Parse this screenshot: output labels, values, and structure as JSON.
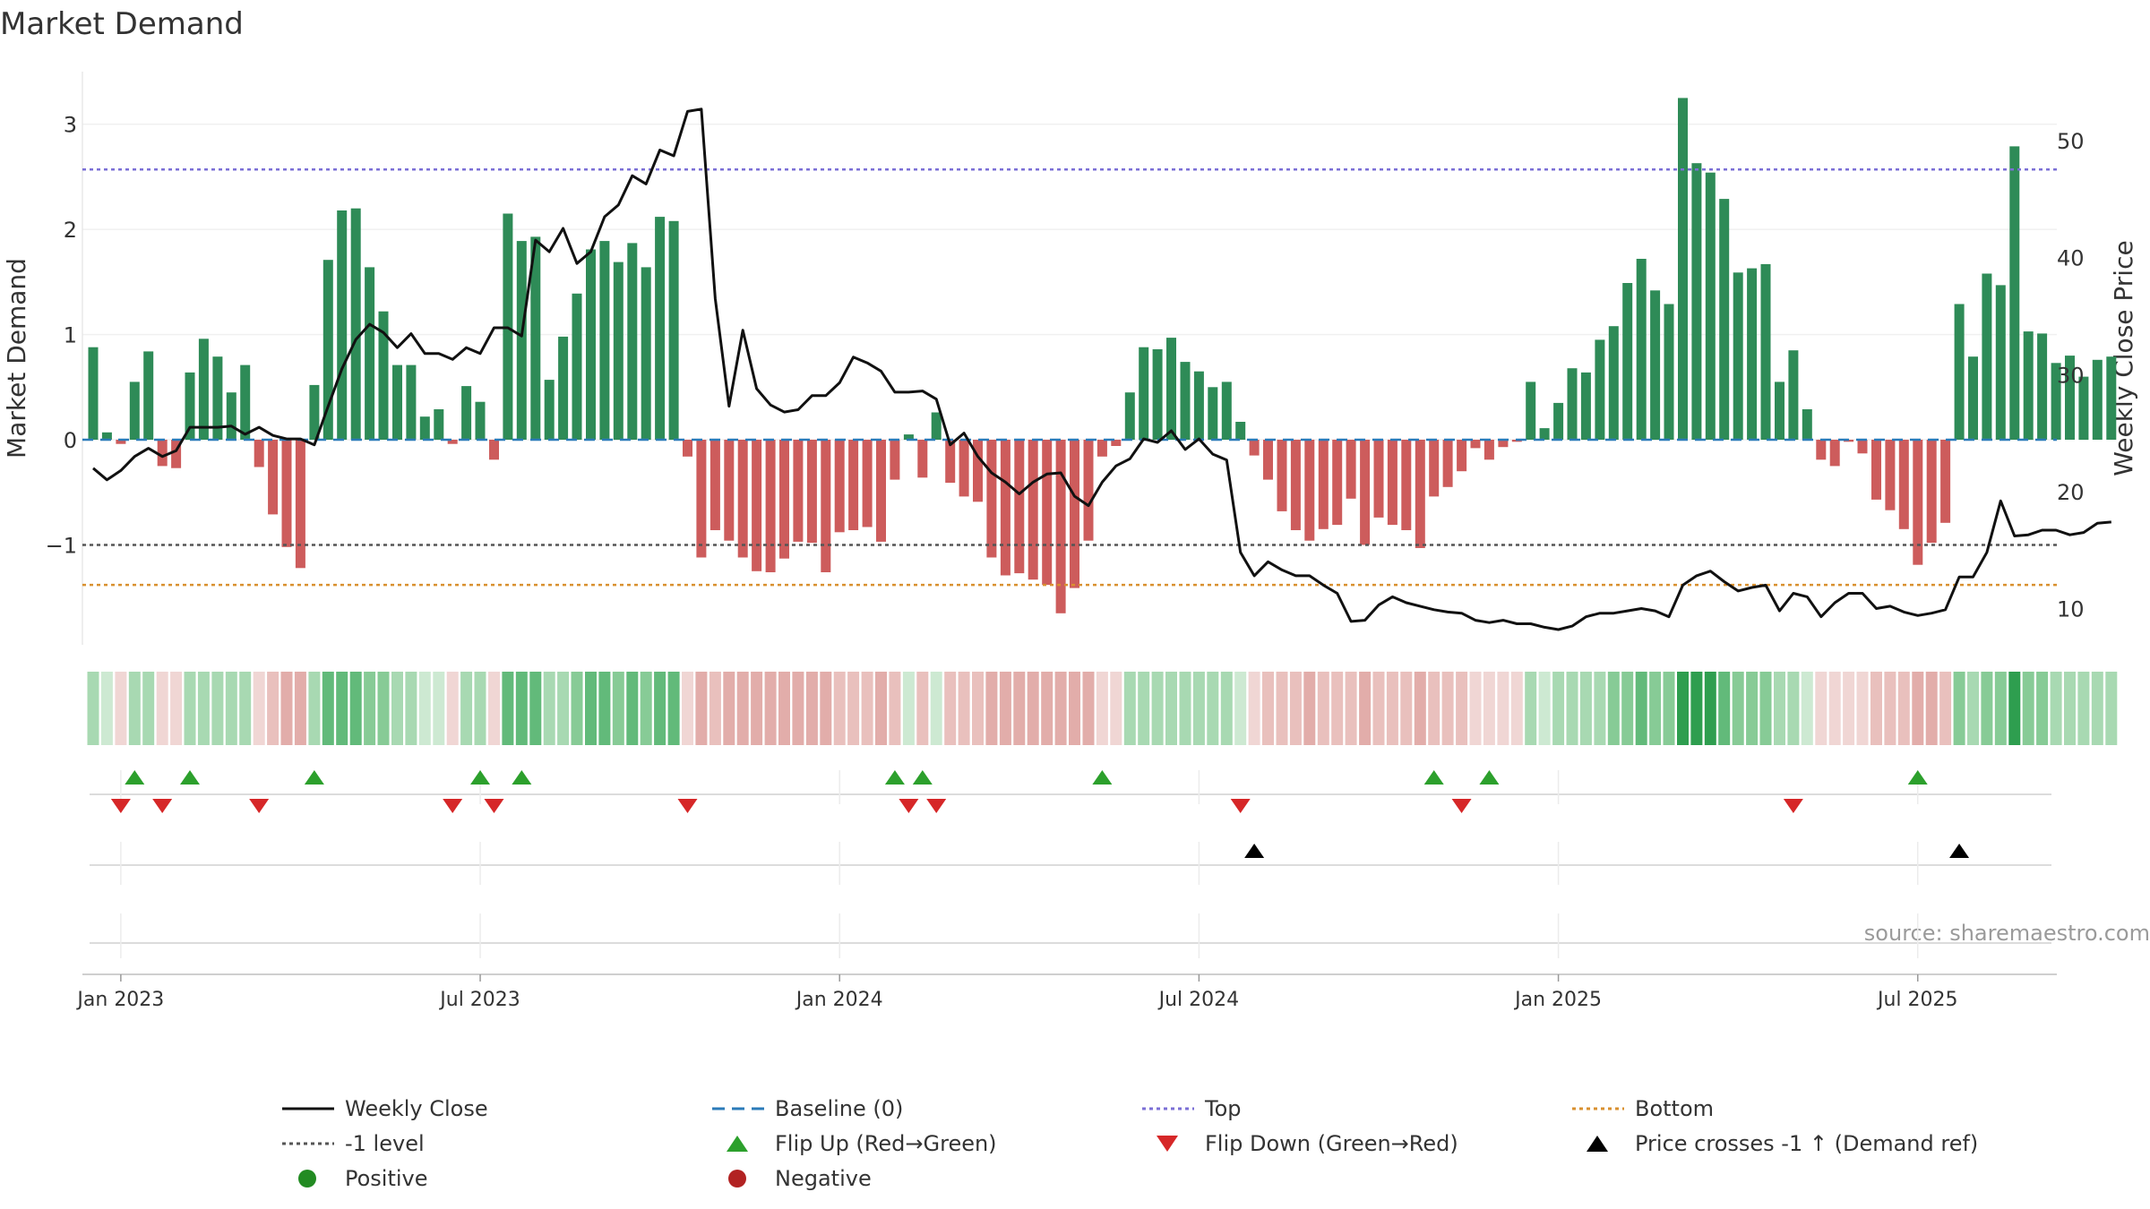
{
  "chart_data": {
    "type": "bar",
    "title": "Market Demand",
    "ylabel": "Market Demand",
    "y2label": "Weekly Close Price",
    "ylim": [
      -1.95,
      3.5
    ],
    "y2lim": [
      6.9,
      55.9
    ],
    "yticks": [
      -1,
      0,
      1,
      2,
      3
    ],
    "ytick_labels": [
      "−1",
      "0",
      "1",
      "2",
      "3"
    ],
    "y2ticks": [
      10,
      20,
      30,
      40,
      50
    ],
    "y2tick_labels": [
      "10",
      "20",
      "30",
      "40",
      "50"
    ],
    "x_start_week": 0,
    "x_end_week": 142,
    "x_tick_weeks": [
      2,
      28,
      54,
      80,
      106,
      132
    ],
    "x_tick_labels": [
      "Jan 2023",
      "Jul 2023",
      "Jan 2024",
      "Jul 2024",
      "Jan 2025",
      "Jul 2025"
    ],
    "reference_lines": {
      "baseline": 0,
      "top": 2.57,
      "minus_one": -1,
      "bottom": -1.38
    },
    "colors": {
      "positive": "#2e8b57",
      "negative": "#cd5c5c",
      "close_line": "#111111",
      "baseline": "#2b7bb9",
      "top": "#7b6fd6",
      "minus_one": "#555555",
      "bottom": "#d9902f",
      "flip_up": "#2ca02c",
      "flip_down": "#d62728",
      "cross": "#000000",
      "positive_dot": "#228b22",
      "negative_dot": "#b22222"
    },
    "series": [
      {
        "name": "Market Demand",
        "values": [
          0.88,
          0.07,
          -0.04,
          0.55,
          0.84,
          -0.25,
          -0.27,
          0.64,
          0.96,
          0.79,
          0.45,
          0.71,
          -0.26,
          -0.71,
          -1.02,
          -1.22,
          0.52,
          1.71,
          2.18,
          2.2,
          1.64,
          1.22,
          0.71,
          0.71,
          0.22,
          0.29,
          -0.04,
          0.51,
          0.36,
          -0.19,
          2.15,
          1.89,
          1.93,
          0.57,
          0.98,
          1.39,
          1.81,
          1.89,
          1.69,
          1.87,
          1.64,
          2.12,
          2.08,
          -0.16,
          -1.12,
          -0.86,
          -0.96,
          -1.12,
          -1.25,
          -1.26,
          -1.13,
          -0.97,
          -0.98,
          -1.26,
          -0.88,
          -0.86,
          -0.83,
          -0.97,
          -0.38,
          0.05,
          -0.36,
          0.26,
          -0.41,
          -0.54,
          -0.59,
          -1.12,
          -1.29,
          -1.27,
          -1.33,
          -1.38,
          -1.65,
          -1.41,
          -0.96,
          -0.16,
          -0.06,
          0.45,
          0.88,
          0.86,
          0.97,
          0.74,
          0.65,
          0.5,
          0.55,
          0.17,
          -0.15,
          -0.38,
          -0.68,
          -0.86,
          -0.96,
          -0.85,
          -0.81,
          -0.56,
          -1.0,
          -0.74,
          -0.81,
          -0.86,
          -1.03,
          -0.54,
          -0.45,
          -0.3,
          -0.08,
          -0.19,
          -0.07,
          -0.02,
          0.55,
          0.11,
          0.35,
          0.68,
          0.64,
          0.95,
          1.08,
          1.49,
          1.72,
          1.42,
          1.29,
          3.25,
          2.63,
          2.54,
          2.29,
          1.59,
          1.63,
          1.67,
          0.55,
          0.85,
          0.29,
          -0.19,
          -0.25,
          -0.02,
          -0.13,
          -0.57,
          -0.67,
          -0.85,
          -1.19,
          -0.98,
          -0.79,
          1.29,
          0.79,
          1.58,
          1.47,
          2.79,
          1.03,
          1.01,
          0.73,
          0.8,
          0.6,
          0.76,
          0.79
        ]
      },
      {
        "name": "Weekly Close",
        "axis": "right",
        "values": [
          22.0,
          21.0,
          21.8,
          23.0,
          23.7,
          23.0,
          23.5,
          25.5,
          25.5,
          25.5,
          25.6,
          24.9,
          25.5,
          24.8,
          24.5,
          24.5,
          24.0,
          27.3,
          30.5,
          33.0,
          34.3,
          33.6,
          32.3,
          33.5,
          31.8,
          31.8,
          31.3,
          32.3,
          31.8,
          34.0,
          34.0,
          33.3,
          41.5,
          40.5,
          42.5,
          39.5,
          40.5,
          43.5,
          44.5,
          47.0,
          46.3,
          49.2,
          48.7,
          52.5,
          52.7,
          36.5,
          27.3,
          33.8,
          28.8,
          27.4,
          26.8,
          27.0,
          28.2,
          28.2,
          29.3,
          31.5,
          31.0,
          30.3,
          28.5,
          28.5,
          28.6,
          27.9,
          24.0,
          25.0,
          23.0,
          21.6,
          20.8,
          19.8,
          20.8,
          21.5,
          21.6,
          19.6,
          18.8,
          20.8,
          22.2,
          22.8,
          24.5,
          24.2,
          25.2,
          23.6,
          24.5,
          23.2,
          22.7,
          14.8,
          12.8,
          14.0,
          13.3,
          12.8,
          12.8,
          12.0,
          11.3,
          8.9,
          9.0,
          10.3,
          11.0,
          10.5,
          10.2,
          9.9,
          9.7,
          9.6,
          9.0,
          8.8,
          9.0,
          8.7,
          8.7,
          8.4,
          8.2,
          8.5,
          9.3,
          9.6,
          9.6,
          9.8,
          10.0,
          9.8,
          9.3,
          12.0,
          12.8,
          13.2,
          12.3,
          11.5,
          11.8,
          12.0,
          9.8,
          11.3,
          11.0,
          9.3,
          10.5,
          11.3,
          11.3,
          10.0,
          10.2,
          9.7,
          9.4,
          9.6,
          9.9,
          12.7,
          12.7,
          14.8,
          19.2,
          16.2,
          16.3,
          16.7,
          16.7,
          16.3,
          16.5,
          17.3,
          17.4
        ]
      }
    ],
    "heat_strip": {
      "label": "demand intensity strip",
      "colors": {
        "pos_4": "#2e9e4f",
        "pos_3": "#62ba7a",
        "pos_2": "#87cb96",
        "pos_1": "#a8d9b2",
        "pos_0": "#cde9d2",
        "neg_0": "#f0d6d4",
        "neg_1": "#e9c0bd",
        "neg_2": "#e2adaa"
      }
    },
    "flip_up_weeks": [
      3,
      7,
      16,
      28,
      31,
      58,
      60,
      73,
      97,
      101,
      132
    ],
    "flip_down_weeks": [
      2,
      5,
      12,
      26,
      29,
      43,
      59,
      61,
      83,
      99,
      123
    ],
    "price_cross_weeks": [
      84,
      135
    ],
    "source_text": "source: sharemaestro.com",
    "legend": [
      {
        "label": "Weekly Close",
        "symbol": "solid-line",
        "color": "#111111"
      },
      {
        "label": "Baseline (0)",
        "symbol": "dashed-line",
        "color": "#2b7bb9"
      },
      {
        "label": "Top",
        "symbol": "dotted-line",
        "color": "#7b6fd6"
      },
      {
        "label": "Bottom",
        "symbol": "dotted-line",
        "color": "#d9902f"
      },
      {
        "label": "-1 level",
        "symbol": "dotted-line",
        "color": "#555555"
      },
      {
        "label": "Flip Up (Red→Green)",
        "symbol": "triangle-up",
        "color": "#2ca02c"
      },
      {
        "label": "Flip Down (Green→Red)",
        "symbol": "triangle-down",
        "color": "#d62728"
      },
      {
        "label": "Price crosses -1 ↑ (Demand ref)",
        "symbol": "triangle-up",
        "color": "#000000"
      },
      {
        "label": "Positive",
        "symbol": "dot",
        "color": "#228b22"
      },
      {
        "label": "Negative",
        "symbol": "dot",
        "color": "#b22222"
      }
    ]
  }
}
